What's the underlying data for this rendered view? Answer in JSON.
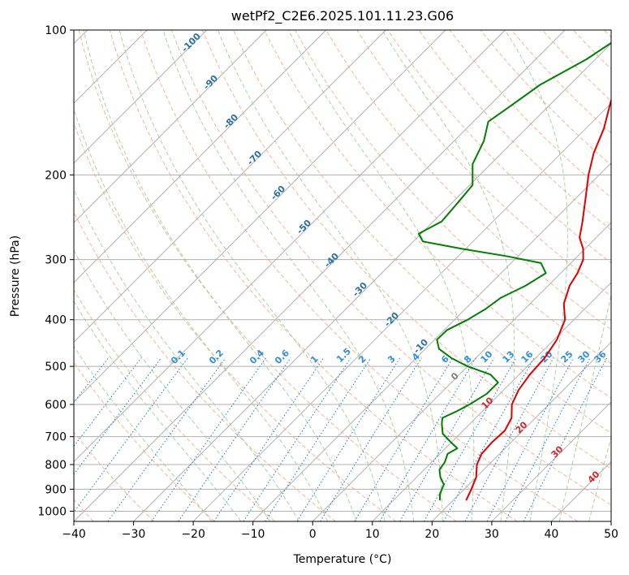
{
  "chart_data": {
    "type": "line",
    "chart_kind": "skew-t log-p diagram",
    "title": "wetPf2_C2E6.2025.101.11.23.G06",
    "xlabel": "Temperature (°C)",
    "ylabel": "Pressure (hPa)",
    "xlim": [
      -40,
      50
    ],
    "ylim": [
      1050,
      100
    ],
    "y_scale": "log",
    "grid": true,
    "x_ticks": [
      -40,
      -30,
      -20,
      -10,
      0,
      10,
      20,
      30,
      40,
      50
    ],
    "x_tick_labels": [
      "−40",
      "−30",
      "−20",
      "−10",
      "0",
      "10",
      "20",
      "30",
      "40",
      "50"
    ],
    "y_ticks": [
      100,
      200,
      300,
      400,
      500,
      600,
      700,
      800,
      900,
      1000
    ],
    "y_tick_labels": [
      "100",
      "200",
      "300",
      "400",
      "500",
      "600",
      "700",
      "800",
      "900",
      "1000"
    ],
    "series": [
      {
        "color": "#e00000",
        "points": [
          [
            950,
            22.2
          ],
          [
            900,
            21.2
          ],
          [
            850,
            20.0
          ],
          [
            800,
            18.0
          ],
          [
            760,
            17.0
          ],
          [
            720,
            16.8
          ],
          [
            680,
            17.0
          ],
          [
            640,
            16.0
          ],
          [
            600,
            13.8
          ],
          [
            560,
            12.5
          ],
          [
            520,
            11.8
          ],
          [
            480,
            11.5
          ],
          [
            440,
            10.5
          ],
          [
            400,
            8.5
          ],
          [
            370,
            5.6
          ],
          [
            340,
            3.6
          ],
          [
            320,
            2.8
          ],
          [
            300,
            1.5
          ],
          [
            285,
            -0.3
          ],
          [
            270,
            -2.8
          ],
          [
            250,
            -5.0
          ],
          [
            225,
            -8.2
          ],
          [
            200,
            -11.8
          ],
          [
            180,
            -14.6
          ],
          [
            160,
            -17.0
          ],
          [
            140,
            -20.5
          ],
          [
            125,
            -22.4
          ],
          [
            110,
            -23.5
          ],
          [
            100,
            -26.5
          ]
        ]
      },
      {
        "color": "#008000",
        "points": [
          [
            950,
            17.8
          ],
          [
            920,
            16.7
          ],
          [
            880,
            15.8
          ],
          [
            850,
            14.0
          ],
          [
            820,
            12.6
          ],
          [
            790,
            12.2
          ],
          [
            760,
            11.3
          ],
          [
            740,
            12.0
          ],
          [
            720,
            10.0
          ],
          [
            690,
            7.1
          ],
          [
            660,
            5.4
          ],
          [
            640,
            4.4
          ],
          [
            620,
            5.7
          ],
          [
            600,
            6.7
          ],
          [
            570,
            7.8
          ],
          [
            540,
            7.8
          ],
          [
            520,
            5.2
          ],
          [
            500,
            0.0
          ],
          [
            480,
            -4.2
          ],
          [
            460,
            -7.7
          ],
          [
            440,
            -9.6
          ],
          [
            420,
            -9.5
          ],
          [
            400,
            -7.8
          ],
          [
            380,
            -6.6
          ],
          [
            360,
            -5.9
          ],
          [
            340,
            -3.8
          ],
          [
            320,
            -2.5
          ],
          [
            305,
            -5.0
          ],
          [
            295,
            -12.0
          ],
          [
            285,
            -20.5
          ],
          [
            275,
            -28.4
          ],
          [
            265,
            -30.4
          ],
          [
            250,
            -28.6
          ],
          [
            230,
            -29.0
          ],
          [
            210,
            -29.5
          ],
          [
            190,
            -33.0
          ],
          [
            170,
            -35.0
          ],
          [
            155,
            -37.5
          ],
          [
            145,
            -36.5
          ],
          [
            130,
            -35.0
          ],
          [
            115,
            -31.5
          ],
          [
            100,
            -29.0
          ]
        ]
      }
    ],
    "background_lines": {
      "dry_adiabats_label_values": [
        "-100",
        "-90",
        "-80",
        "-70",
        "-60",
        "-50",
        "-40",
        "-30",
        "-20",
        "-10"
      ],
      "moist_adiabats_label_values": [
        "0",
        "10",
        "20",
        "30",
        "40"
      ],
      "mixing_ratio_label_values": [
        "0.1",
        "0.2",
        "0.4",
        "0.6",
        "1",
        "1.5",
        "2",
        "3",
        "4",
        "6",
        "8",
        "10",
        "13",
        "16",
        "20",
        "25",
        "30",
        "36"
      ],
      "colors": {
        "isotherm": "#b0b0b0",
        "dry_adiabat": "#f6a07a",
        "moist_adiabat": "#8fc98f",
        "mixing_ratio": "#1f77d4",
        "dry_label": "#2a6fa8",
        "moist_label_zero": "#808080",
        "moist_label": "#d62728",
        "mixing_label": "#2f8fe0",
        "isobar_grid": "#b0b0b0"
      }
    }
  }
}
